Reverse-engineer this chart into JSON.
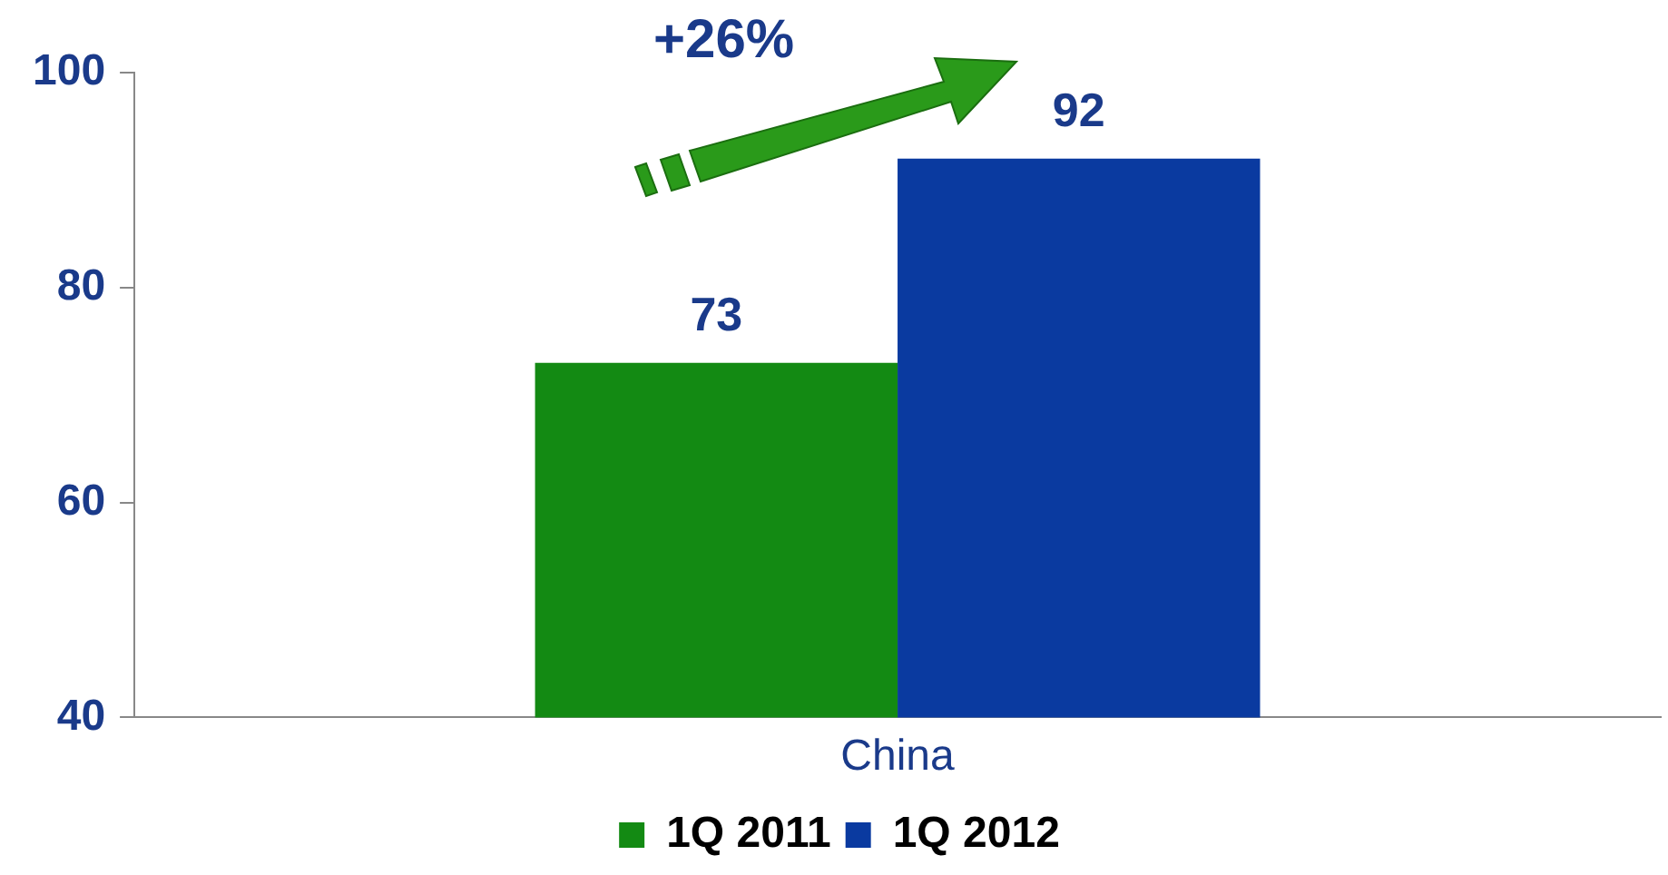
{
  "chart_data": {
    "type": "bar",
    "categories": [
      "China"
    ],
    "series": [
      {
        "name": "1Q 2011",
        "color": "#138a13",
        "values": [
          73
        ]
      },
      {
        "name": "1Q 2012",
        "color": "#0a3aa0",
        "values": [
          92
        ]
      }
    ],
    "ylim": [
      40,
      100
    ],
    "yticks": [
      40,
      60,
      80,
      100
    ],
    "grid": false,
    "legend": "bottom",
    "data_labels": true,
    "annotations": [
      "+26%"
    ]
  }
}
